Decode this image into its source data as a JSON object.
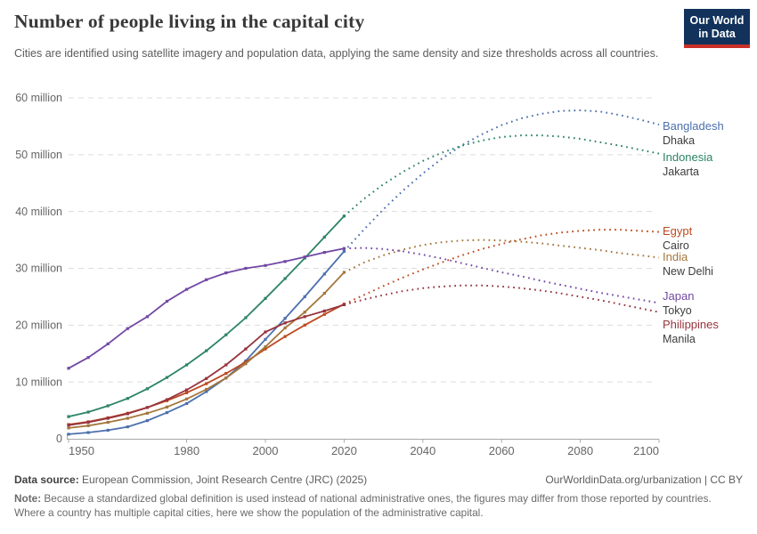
{
  "header": {
    "title": "Number of people living in the capital city",
    "subtitle": "Cities are identified using satellite imagery and population data, applying the same density and size thresholds across all countries.",
    "logo_line1": "Our World",
    "logo_line2": "in Data",
    "logo_bg_color": "#12325B",
    "logo_stripe_color": "#C93128"
  },
  "footer": {
    "source_label": "Data source:",
    "source_value": " European Commission, Joint Research Centre (JRC) (2025)",
    "link_text": "OurWorldinData.org/urbanization | CC BY",
    "note_label": "Note:",
    "note_value": " Because a standardized global definition is used instead of national administrative ones, the figures may differ from those reported by countries. Where a country has multiple capital cities, here we show the population of the administrative capital."
  },
  "chart_data": {
    "type": "line",
    "title": "Number of people living in the capital city",
    "xlabel": "",
    "ylabel": "",
    "unit": "million people",
    "xlim": [
      1950,
      2100
    ],
    "ylim": [
      0,
      60
    ],
    "grid": "horizontal dashed",
    "legend_position": "right-edge series end labels",
    "x_ticks": [
      1950,
      1980,
      2000,
      2020,
      2040,
      2060,
      2080,
      2100
    ],
    "y_ticks": [
      {
        "v": 0,
        "label": "0"
      },
      {
        "v": 10,
        "label": "10 million"
      },
      {
        "v": 20,
        "label": "20 million"
      },
      {
        "v": 30,
        "label": "30 million"
      },
      {
        "v": 40,
        "label": "40 million"
      },
      {
        "v": 50,
        "label": "50 million"
      },
      {
        "v": 60,
        "label": "60 million"
      }
    ],
    "observed_years": [
      1950,
      1955,
      1960,
      1965,
      1970,
      1975,
      1980,
      1985,
      1990,
      1995,
      2000,
      2005,
      2010,
      2015,
      2020
    ],
    "projected_years": [
      2020,
      2025,
      2030,
      2035,
      2040,
      2045,
      2050,
      2055,
      2060,
      2065,
      2070,
      2075,
      2080,
      2085,
      2090,
      2095,
      2100
    ],
    "observed_style": "solid line with point markers",
    "projected_style": "dotted line",
    "series": [
      {
        "country": "Bangladesh",
        "city": "Dhaka",
        "color": "#4C70AE",
        "observed": [
          0.8,
          1.1,
          1.5,
          2.1,
          3.2,
          4.6,
          6.2,
          8.3,
          10.7,
          13.7,
          17.5,
          21.2,
          25.0,
          29.0,
          33.0
        ],
        "projected": [
          33.0,
          36.8,
          40.4,
          43.7,
          46.7,
          49.4,
          51.7,
          53.6,
          55.2,
          56.4,
          57.2,
          57.7,
          57.8,
          57.6,
          57.0,
          56.2,
          55.3
        ]
      },
      {
        "country": "Indonesia",
        "city": "Jakarta",
        "color": "#2C8465",
        "observed": [
          3.9,
          4.7,
          5.8,
          7.1,
          8.8,
          10.8,
          13.0,
          15.5,
          18.3,
          21.3,
          24.7,
          28.2,
          31.8,
          35.5,
          39.2
        ],
        "projected": [
          39.2,
          42.2,
          44.8,
          47.0,
          48.9,
          50.4,
          51.6,
          52.5,
          53.1,
          53.4,
          53.4,
          53.2,
          52.8,
          52.2,
          51.6,
          50.9,
          50.2
        ]
      },
      {
        "country": "Egypt",
        "city": "Cairo",
        "color": "#BC4A1F",
        "observed": [
          2.5,
          3.0,
          3.7,
          4.5,
          5.5,
          6.7,
          8.1,
          9.7,
          11.5,
          13.5,
          15.8,
          18.0,
          20.0,
          21.9,
          23.7
        ],
        "projected": [
          23.7,
          25.3,
          26.9,
          28.4,
          29.8,
          31.1,
          32.3,
          33.4,
          34.3,
          35.1,
          35.8,
          36.3,
          36.6,
          36.8,
          36.8,
          36.6,
          36.4
        ]
      },
      {
        "country": "India",
        "city": "New Delhi",
        "color": "#A4763B",
        "observed": [
          1.9,
          2.3,
          2.9,
          3.6,
          4.5,
          5.6,
          7.0,
          8.7,
          10.7,
          13.2,
          16.2,
          19.5,
          22.3,
          25.6,
          29.3
        ],
        "projected": [
          29.3,
          31.0,
          32.3,
          33.3,
          34.1,
          34.6,
          34.9,
          35.0,
          34.9,
          34.7,
          34.4,
          34.0,
          33.6,
          33.2,
          32.7,
          32.3,
          31.9
        ]
      },
      {
        "country": "Japan",
        "city": "Tokyo",
        "color": "#7248A3",
        "observed": [
          12.4,
          14.3,
          16.7,
          19.4,
          21.5,
          24.2,
          26.3,
          28.0,
          29.2,
          30.0,
          30.5,
          31.2,
          32.0,
          32.8,
          33.5
        ],
        "projected": [
          33.5,
          33.6,
          33.4,
          33.0,
          32.4,
          31.7,
          30.9,
          30.1,
          29.3,
          28.6,
          27.8,
          27.1,
          26.4,
          25.7,
          25.1,
          24.5,
          23.9
        ]
      },
      {
        "country": "Philippines",
        "city": "Manila",
        "color": "#97333E",
        "observed": [
          2.4,
          2.9,
          3.6,
          4.4,
          5.5,
          6.9,
          8.6,
          10.6,
          13.0,
          15.8,
          18.8,
          20.4,
          21.5,
          22.5,
          23.6
        ],
        "projected": [
          23.6,
          24.5,
          25.3,
          26.0,
          26.5,
          26.8,
          27.0,
          27.0,
          26.8,
          26.5,
          26.1,
          25.6,
          25.0,
          24.4,
          23.7,
          23.0,
          22.3
        ]
      }
    ]
  }
}
